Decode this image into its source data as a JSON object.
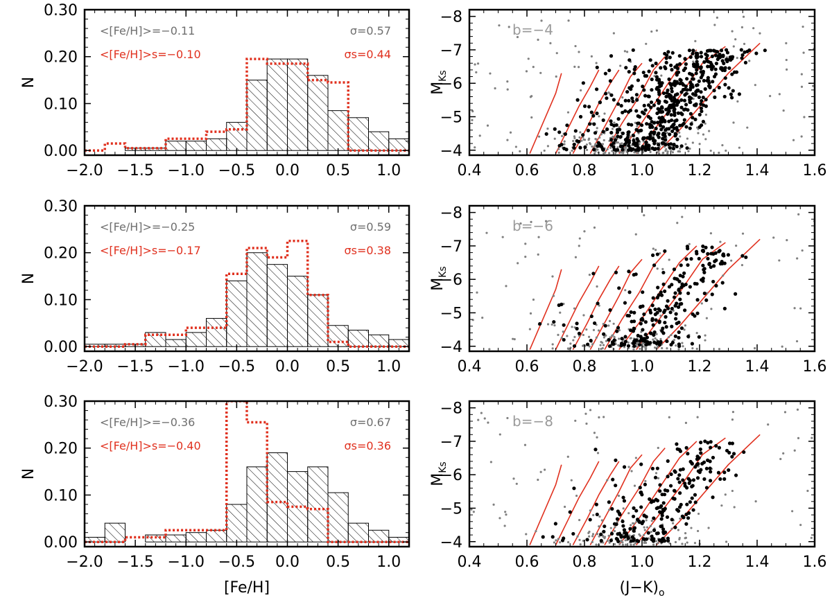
{
  "figure": {
    "colors": {
      "axis": "#000000",
      "hist_all": "#000000",
      "hist_s": "#e0301e",
      "ann_all": "#6e6e6e",
      "ann_s": "#e0301e",
      "points_gray": "#808080",
      "points_black": "#000000",
      "isochrones": "#e0301e",
      "panel_label": "#9a9a9a"
    }
  },
  "chart_data": [
    {
      "type": "histogram",
      "row": 0,
      "xlabel": "",
      "ylabel": "N",
      "xlim": [
        -2.0,
        1.2
      ],
      "ylim": [
        -0.01,
        0.3
      ],
      "xticks": [
        "−2.0",
        "−1.5",
        "−1.0",
        "−0.5",
        "0.0",
        "0.5",
        "1.0"
      ],
      "yticks": [
        "0.00",
        "0.10",
        "0.20",
        "0.30"
      ],
      "bin_edges": [
        -2.0,
        -1.8,
        -1.6,
        -1.4,
        -1.2,
        -1.0,
        -0.8,
        -0.6,
        -0.4,
        -0.2,
        0.0,
        0.2,
        0.4,
        0.6,
        0.8,
        1.0,
        1.2
      ],
      "series": [
        {
          "values": [
            0.0,
            0.0,
            0.005,
            0.005,
            0.02,
            0.02,
            0.025,
            0.06,
            0.15,
            0.195,
            0.195,
            0.16,
            0.085,
            0.07,
            0.04,
            0.025,
            0.015
          ]
        },
        {
          "values": [
            0.0,
            0.015,
            0.005,
            0.005,
            0.025,
            0.025,
            0.04,
            0.045,
            0.195,
            0.185,
            0.185,
            0.15,
            0.145,
            0.0,
            0.0,
            0.0,
            0.0
          ]
        }
      ],
      "annotations": {
        "mean_all": "<[Fe/H]>=−0.11",
        "sigma_all": "σ=0.57",
        "mean_s": "<[Fe/H]>s=−0.10",
        "sigma_s": "σs=0.44"
      }
    },
    {
      "type": "histogram",
      "row": 1,
      "xlabel": "",
      "ylabel": "N",
      "xlim": [
        -2.0,
        1.2
      ],
      "ylim": [
        -0.01,
        0.3
      ],
      "xticks": [
        "−2.0",
        "−1.5",
        "−1.0",
        "−0.5",
        "0.0",
        "0.5",
        "1.0"
      ],
      "yticks": [
        "0.00",
        "0.10",
        "0.20",
        "0.30"
      ],
      "bin_edges": [
        -2.0,
        -1.8,
        -1.6,
        -1.4,
        -1.2,
        -1.0,
        -0.8,
        -0.6,
        -0.4,
        -0.2,
        0.0,
        0.2,
        0.4,
        0.6,
        0.8,
        1.0,
        1.2
      ],
      "series": [
        {
          "values": [
            0.005,
            0.005,
            0.005,
            0.03,
            0.015,
            0.03,
            0.06,
            0.14,
            0.2,
            0.175,
            0.15,
            0.11,
            0.045,
            0.035,
            0.025,
            0.015,
            0.0
          ]
        },
        {
          "values": [
            0.0,
            0.0,
            0.005,
            0.025,
            0.025,
            0.04,
            0.04,
            0.155,
            0.21,
            0.19,
            0.225,
            0.11,
            0.01,
            0.0,
            0.0,
            0.0,
            0.0
          ]
        }
      ],
      "annotations": {
        "mean_all": "<[Fe/H]>=−0.25",
        "sigma_all": "σ=0.59",
        "mean_s": "<[Fe/H]>s=−0.17",
        "sigma_s": "σs=0.38"
      }
    },
    {
      "type": "histogram",
      "row": 2,
      "xlabel": "[Fe/H]",
      "ylabel": "N",
      "xlim": [
        -2.0,
        1.2
      ],
      "ylim": [
        -0.01,
        0.3
      ],
      "xticks": [
        "−2.0",
        "−1.5",
        "−1.0",
        "−0.5",
        "0.0",
        "0.5",
        "1.0"
      ],
      "yticks": [
        "0.00",
        "0.10",
        "0.20",
        "0.30"
      ],
      "bin_edges": [
        -2.0,
        -1.8,
        -1.6,
        -1.4,
        -1.2,
        -1.0,
        -0.8,
        -0.6,
        -0.4,
        -0.2,
        0.0,
        0.2,
        0.4,
        0.6,
        0.8,
        1.0,
        1.2
      ],
      "series": [
        {
          "values": [
            0.01,
            0.04,
            0.0,
            0.015,
            0.015,
            0.02,
            0.025,
            0.08,
            0.16,
            0.19,
            0.15,
            0.16,
            0.105,
            0.04,
            0.025,
            0.01,
            0.0
          ]
        },
        {
          "values": [
            0.0,
            0.0,
            0.01,
            0.01,
            0.025,
            0.025,
            0.025,
            0.3,
            0.255,
            0.085,
            0.075,
            0.07,
            0.0,
            0.0,
            0.0,
            0.0,
            0.0
          ]
        }
      ],
      "annotations": {
        "mean_all": "<[Fe/H]>=−0.36",
        "sigma_all": "σ=0.67",
        "mean_s": "<[Fe/H]>s=−0.40",
        "sigma_s": "σs=0.36"
      }
    },
    {
      "type": "scatter",
      "row": 0,
      "panel_label": "b=−4",
      "xlabel": "",
      "ylabel": "M_Ks",
      "xlim": [
        0.4,
        1.6
      ],
      "ylim": [
        -3.85,
        -8.2
      ],
      "xticks": [
        "0.4",
        "0.6",
        "0.8",
        "1.0",
        "1.2",
        "1.4",
        "1.6"
      ],
      "yticks": [
        "−4",
        "−5",
        "−6",
        "−7",
        "−8"
      ],
      "isochrones": [
        {
          "x": [
            0.61,
            0.64,
            0.67,
            0.7,
            0.72
          ],
          "y": [
            -3.9,
            -4.5,
            -5.1,
            -5.7,
            -6.3
          ]
        },
        {
          "x": [
            0.7,
            0.74,
            0.78,
            0.82,
            0.85
          ],
          "y": [
            -3.9,
            -4.6,
            -5.3,
            -5.9,
            -6.4
          ]
        },
        {
          "x": [
            0.76,
            0.81,
            0.85,
            0.89,
            0.92
          ],
          "y": [
            -3.9,
            -4.7,
            -5.4,
            -6.0,
            -6.4
          ]
        },
        {
          "x": [
            0.82,
            0.87,
            0.92,
            0.96,
            1.0
          ],
          "y": [
            -3.9,
            -4.7,
            -5.5,
            -6.2,
            -6.6
          ]
        },
        {
          "x": [
            0.87,
            0.93,
            0.99,
            1.04,
            1.08
          ],
          "y": [
            -3.9,
            -4.8,
            -5.6,
            -6.4,
            -6.8
          ]
        },
        {
          "x": [
            0.92,
            0.99,
            1.06,
            1.13,
            1.19
          ],
          "y": [
            -3.9,
            -4.7,
            -5.6,
            -6.5,
            -7.0
          ]
        },
        {
          "x": [
            0.98,
            1.05,
            1.13,
            1.21,
            1.29
          ],
          "y": [
            -3.9,
            -4.7,
            -5.6,
            -6.6,
            -7.1
          ]
        },
        {
          "x": [
            1.05,
            1.13,
            1.21,
            1.3,
            1.41
          ],
          "y": [
            -3.9,
            -4.6,
            -5.4,
            -6.3,
            -7.2
          ]
        }
      ],
      "n_gray_points": 320,
      "n_black_points": 560
    },
    {
      "type": "scatter",
      "row": 1,
      "panel_label": "b=−6",
      "xlabel": "",
      "ylabel": "M_Ks",
      "xlim": [
        0.4,
        1.6
      ],
      "ylim": [
        -3.85,
        -8.2
      ],
      "xticks": [
        "0.4",
        "0.6",
        "0.8",
        "1.0",
        "1.2",
        "1.4",
        "1.6"
      ],
      "yticks": [
        "−4",
        "−5",
        "−6",
        "−7",
        "−8"
      ],
      "isochrones": [
        {
          "x": [
            0.61,
            0.64,
            0.67,
            0.7,
            0.72
          ],
          "y": [
            -3.9,
            -4.5,
            -5.1,
            -5.7,
            -6.3
          ]
        },
        {
          "x": [
            0.7,
            0.74,
            0.78,
            0.82,
            0.85
          ],
          "y": [
            -3.9,
            -4.6,
            -5.3,
            -5.9,
            -6.4
          ]
        },
        {
          "x": [
            0.76,
            0.81,
            0.85,
            0.89,
            0.92
          ],
          "y": [
            -3.9,
            -4.7,
            -5.4,
            -6.0,
            -6.4
          ]
        },
        {
          "x": [
            0.82,
            0.87,
            0.92,
            0.96,
            1.0
          ],
          "y": [
            -3.9,
            -4.7,
            -5.5,
            -6.2,
            -6.6
          ]
        },
        {
          "x": [
            0.87,
            0.93,
            0.99,
            1.04,
            1.08
          ],
          "y": [
            -3.9,
            -4.8,
            -5.6,
            -6.4,
            -6.8
          ]
        },
        {
          "x": [
            0.92,
            0.99,
            1.06,
            1.13,
            1.19
          ],
          "y": [
            -3.9,
            -4.7,
            -5.6,
            -6.5,
            -7.0
          ]
        },
        {
          "x": [
            0.98,
            1.05,
            1.13,
            1.21,
            1.29
          ],
          "y": [
            -3.9,
            -4.7,
            -5.6,
            -6.6,
            -7.1
          ]
        },
        {
          "x": [
            1.05,
            1.13,
            1.21,
            1.3,
            1.41
          ],
          "y": [
            -3.9,
            -4.6,
            -5.4,
            -6.3,
            -7.2
          ]
        }
      ],
      "n_gray_points": 220,
      "n_black_points": 240
    },
    {
      "type": "scatter",
      "row": 2,
      "panel_label": "b=−8",
      "xlabel": "(J−K)o",
      "ylabel": "M_Ks",
      "xlim": [
        0.4,
        1.6
      ],
      "ylim": [
        -3.85,
        -8.2
      ],
      "xticks": [
        "0.4",
        "0.6",
        "0.8",
        "1.0",
        "1.2",
        "1.4",
        "1.6"
      ],
      "yticks": [
        "−4",
        "−5",
        "−6",
        "−7",
        "−8"
      ],
      "isochrones": [
        {
          "x": [
            0.61,
            0.64,
            0.67,
            0.7,
            0.72
          ],
          "y": [
            -3.9,
            -4.5,
            -5.1,
            -5.7,
            -6.3
          ]
        },
        {
          "x": [
            0.7,
            0.74,
            0.78,
            0.82,
            0.85
          ],
          "y": [
            -3.9,
            -4.6,
            -5.3,
            -5.9,
            -6.4
          ]
        },
        {
          "x": [
            0.76,
            0.81,
            0.85,
            0.89,
            0.92
          ],
          "y": [
            -3.9,
            -4.7,
            -5.4,
            -6.0,
            -6.4
          ]
        },
        {
          "x": [
            0.82,
            0.87,
            0.92,
            0.96,
            1.0
          ],
          "y": [
            -3.9,
            -4.7,
            -5.5,
            -6.2,
            -6.6
          ]
        },
        {
          "x": [
            0.87,
            0.93,
            0.99,
            1.04,
            1.08
          ],
          "y": [
            -3.9,
            -4.8,
            -5.6,
            -6.4,
            -6.8
          ]
        },
        {
          "x": [
            0.92,
            0.99,
            1.06,
            1.13,
            1.19
          ],
          "y": [
            -3.9,
            -4.7,
            -5.6,
            -6.5,
            -7.0
          ]
        },
        {
          "x": [
            0.98,
            1.05,
            1.13,
            1.21,
            1.29
          ],
          "y": [
            -3.9,
            -4.7,
            -5.6,
            -6.6,
            -7.1
          ]
        },
        {
          "x": [
            1.05,
            1.13,
            1.21,
            1.3,
            1.41
          ],
          "y": [
            -3.9,
            -4.6,
            -5.4,
            -6.3,
            -7.2
          ]
        }
      ],
      "n_gray_points": 200,
      "n_black_points": 230
    }
  ]
}
